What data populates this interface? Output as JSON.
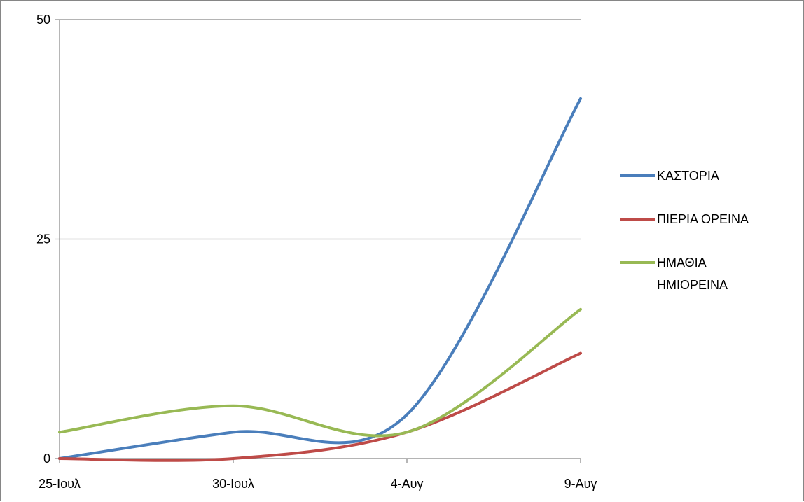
{
  "chart_data": {
    "type": "line",
    "title": "",
    "xlabel": "",
    "ylabel": "",
    "categories": [
      "25-Ιουλ",
      "30-Ιουλ",
      "4-Αυγ",
      "9-Αυγ"
    ],
    "ylim": [
      0,
      50
    ],
    "yticks": [
      "0",
      "25",
      "50"
    ],
    "grid": "horizontal",
    "legend_position": "right",
    "smooth": true,
    "series": [
      {
        "name": "ΚΑΣΤΟΡΙΑ",
        "name_lines": [
          "ΚΑΣΤΟΡΙΑ"
        ],
        "color": "#4a7ebb",
        "values": [
          0,
          3,
          5,
          41
        ]
      },
      {
        "name": "ΠΙΕΡΙΑ ΟΡΕΙΝΑ",
        "name_lines": [
          "ΠΙΕΡΙΑ ΟΡΕΙΝΑ"
        ],
        "color": "#be4b48",
        "values": [
          0,
          0,
          3,
          12
        ]
      },
      {
        "name": "ΗΜΑΘΙΑ ΗΜΙΟΡΕΙΝΑ",
        "name_lines": [
          "ΗΜΑΘΙΑ",
          "ΗΜΙΟΡΕΙΝΑ"
        ],
        "color": "#98b954",
        "values": [
          3,
          6,
          3,
          17
        ]
      }
    ]
  }
}
